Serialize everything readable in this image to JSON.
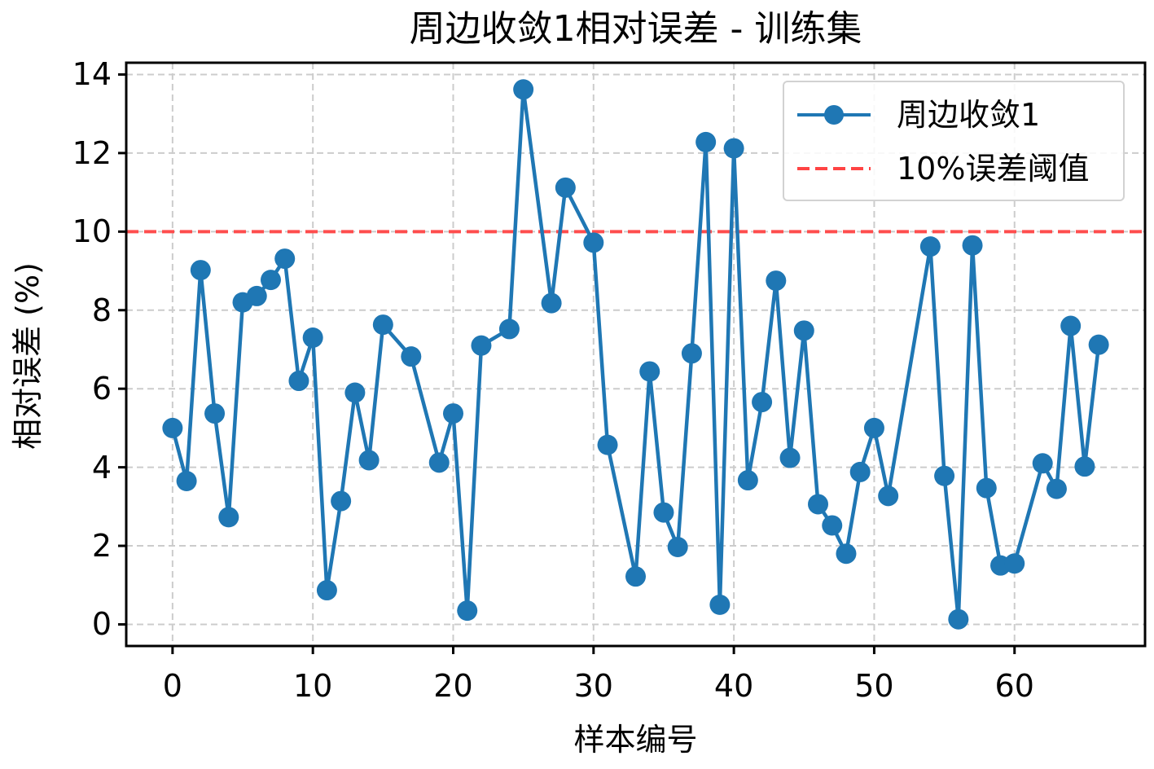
{
  "chart_data": {
    "type": "line",
    "title": "周边收敛1相对误差 - 训练集",
    "xlabel": "样本编号",
    "ylabel": "相对误差 (%)",
    "xlim": [
      -3.3,
      69.3
    ],
    "ylim": [
      -0.55,
      14.3
    ],
    "xticks": [
      "0",
      "10",
      "20",
      "30",
      "40",
      "50",
      "60"
    ],
    "yticks": [
      "0",
      "2",
      "4",
      "6",
      "8",
      "10",
      "12",
      "14"
    ],
    "grid": true,
    "legend_position": "top-right",
    "series": [
      {
        "name": "周边收敛1",
        "color": "#1f77b4",
        "marker": "circle",
        "x": [
          0,
          1,
          2,
          3,
          4,
          5,
          6,
          7,
          8,
          9,
          10,
          11,
          12,
          13,
          14,
          15,
          17,
          19,
          20,
          21,
          22,
          24,
          25,
          27,
          28,
          30,
          31,
          33,
          34,
          35,
          36,
          37,
          38,
          39,
          40,
          41,
          42,
          43,
          44,
          45,
          46,
          47,
          48,
          49,
          50,
          51,
          54,
          55,
          56,
          57,
          58,
          59,
          60,
          62,
          63,
          64,
          65,
          66
        ],
        "values": [
          5.0,
          3.65,
          9.02,
          5.37,
          2.73,
          8.2,
          8.36,
          8.77,
          9.31,
          6.2,
          7.3,
          0.87,
          3.14,
          5.9,
          4.18,
          7.63,
          6.82,
          4.12,
          5.37,
          0.35,
          7.1,
          7.52,
          13.62,
          8.18,
          11.12,
          9.72,
          4.57,
          1.22,
          6.44,
          2.85,
          1.97,
          6.9,
          12.28,
          0.5,
          12.12,
          3.67,
          5.66,
          8.75,
          4.24,
          7.48,
          3.06,
          2.52,
          1.8,
          3.88,
          5.0,
          3.27,
          9.62,
          3.78,
          0.13,
          9.65,
          3.47,
          1.5,
          1.55,
          4.1,
          3.45,
          7.6,
          4.02,
          7.12
        ]
      }
    ],
    "reference_lines": [
      {
        "name": "10%误差阈值",
        "y": 10,
        "color": "#ff4444",
        "style": "dashed"
      }
    ]
  }
}
